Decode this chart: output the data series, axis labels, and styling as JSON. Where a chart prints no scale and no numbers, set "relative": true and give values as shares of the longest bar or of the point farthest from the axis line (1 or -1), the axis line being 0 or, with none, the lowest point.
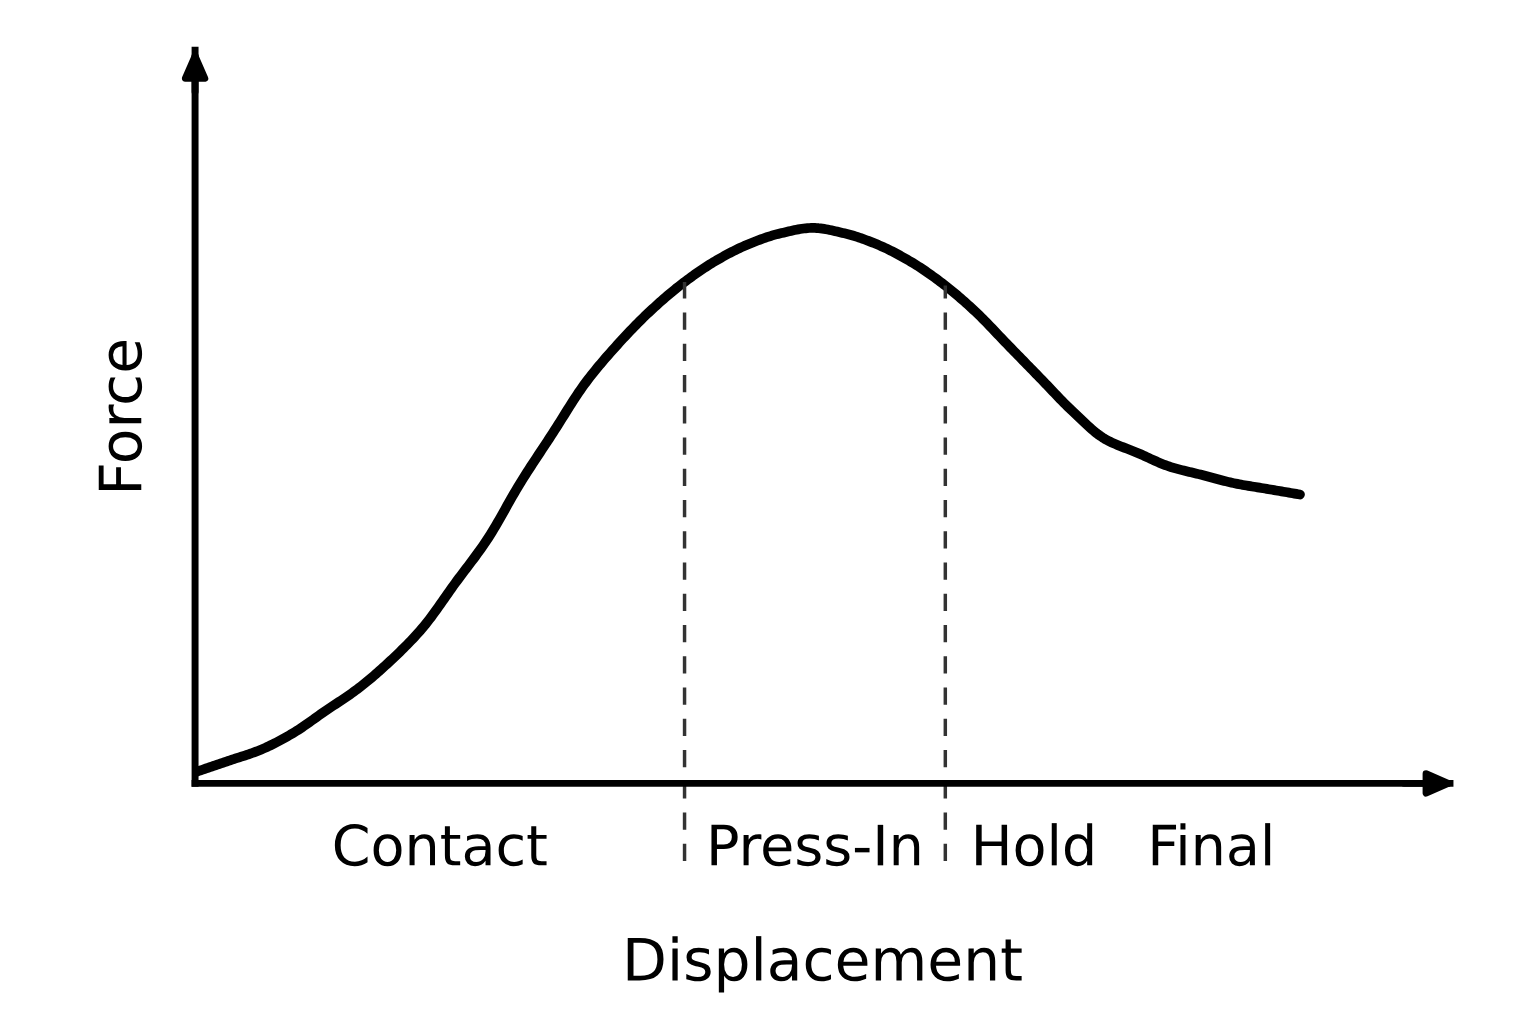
{
  "chart_data": {
    "type": "line",
    "xlabel": "Displacement",
    "ylabel": "Force",
    "relative": true,
    "color": "#000000",
    "marker": "none",
    "line_style": "solid",
    "categories": [
      null,
      null,
      null,
      null,
      null,
      null,
      null,
      null,
      null,
      null,
      null,
      null,
      null,
      null,
      null,
      null,
      null,
      null,
      null,
      null,
      null,
      null,
      null,
      null,
      null,
      null,
      null,
      null,
      null,
      null,
      null,
      null,
      null,
      null,
      null
    ],
    "values": [
      0.02,
      0.04,
      0.06,
      0.09,
      0.13,
      0.17,
      0.22,
      0.28,
      0.36,
      0.44,
      0.54,
      0.63,
      0.72,
      0.79,
      0.85,
      0.9,
      0.94,
      0.97,
      0.99,
      1.0,
      0.99,
      0.97,
      0.94,
      0.9,
      0.85,
      0.79,
      0.73,
      0.67,
      0.62,
      0.595,
      0.57,
      0.555,
      0.54,
      0.53,
      0.52
    ],
    "annotations": [
      "Contact",
      "Press-In",
      "Hold",
      "Final"
    ]
  }
}
